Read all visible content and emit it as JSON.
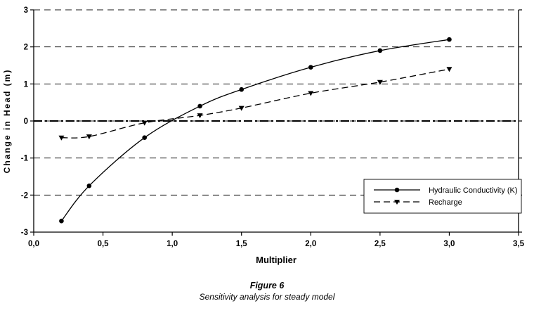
{
  "figure": {
    "caption_title": "Figure 6",
    "caption_subtitle": "Sensitivity analysis for steady model"
  },
  "chart_data": {
    "type": "line",
    "title": "",
    "xlabel": "Multiplier",
    "ylabel": "Change in Head (m)",
    "xlim": [
      0,
      3.5
    ],
    "ylim": [
      -3,
      3
    ],
    "grid": "horizontal-dashed",
    "x_ticks": {
      "values": [
        0,
        0.5,
        1.0,
        1.5,
        2.0,
        2.5,
        3.0,
        3.5
      ],
      "labels": [
        "0,0",
        "0,5",
        "1,0",
        "1,5",
        "2,0",
        "2,5",
        "3,0",
        "3,5"
      ]
    },
    "y_ticks": {
      "values": [
        -3,
        -2,
        -1,
        0,
        1,
        2,
        3
      ],
      "labels": [
        "-3",
        "-2",
        "-1",
        "0",
        "1",
        "2",
        "3"
      ]
    },
    "reference_line": {
      "y": 0,
      "style": "dash-dot"
    },
    "legend": {
      "position": "inside-bottom-right"
    },
    "colors": {
      "line": "#000000",
      "background": "#ffffff"
    },
    "series": [
      {
        "name": "Hydraulic Conductivity (K)",
        "marker": "circle",
        "line": "solid",
        "x": [
          0.2,
          0.4,
          0.8,
          1.2,
          1.5,
          2.0,
          2.5,
          3.0
        ],
        "y": [
          -2.7,
          -1.75,
          -0.45,
          0.4,
          0.85,
          1.45,
          1.9,
          2.2
        ]
      },
      {
        "name": "Recharge",
        "marker": "triangle-down",
        "line": "dashed",
        "x": [
          0.2,
          0.4,
          0.8,
          1.2,
          1.5,
          2.0,
          2.5,
          3.0
        ],
        "y": [
          -0.45,
          -0.42,
          -0.05,
          0.15,
          0.35,
          0.75,
          1.05,
          1.4
        ]
      }
    ]
  }
}
